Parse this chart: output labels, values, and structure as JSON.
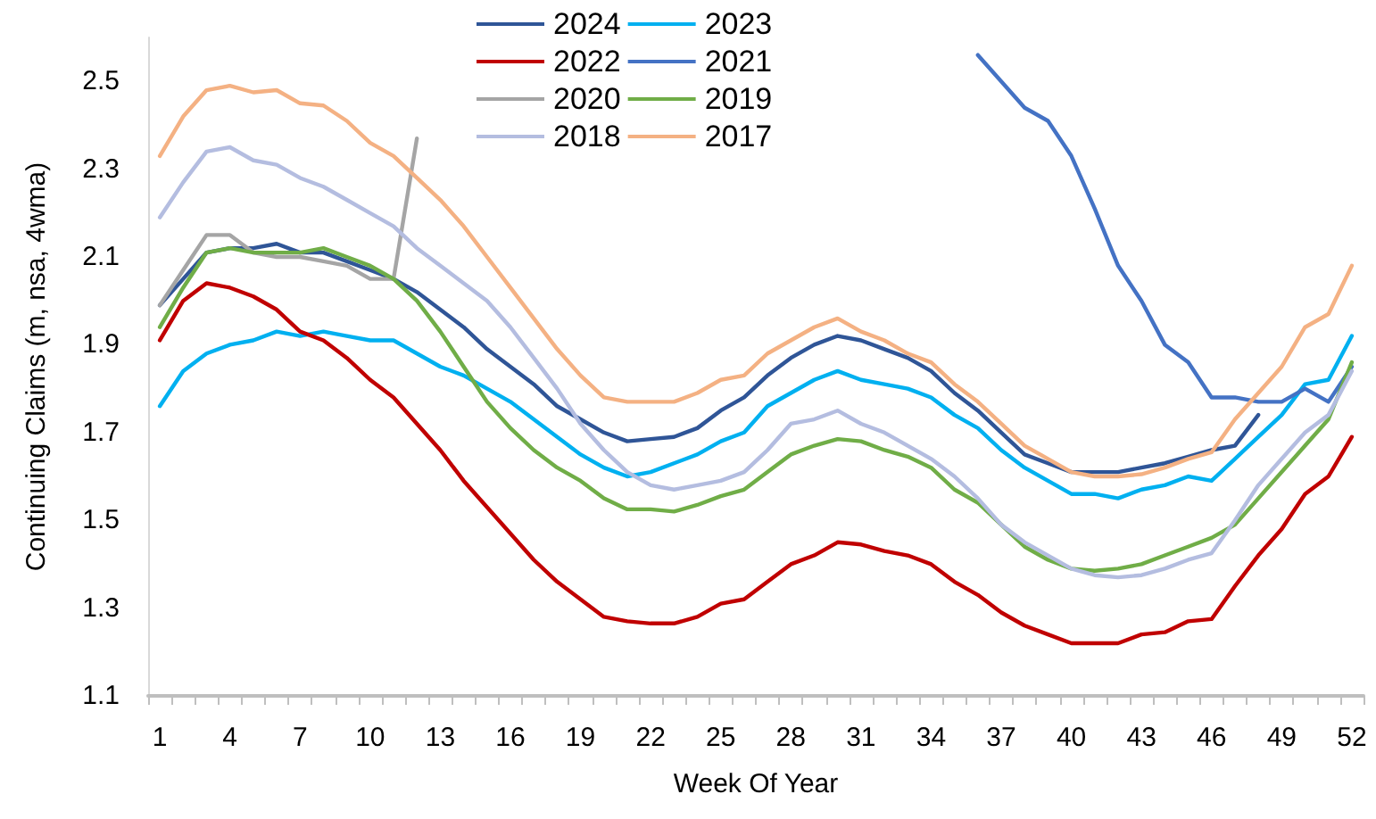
{
  "chart_data": {
    "type": "line",
    "xlabel": "Week Of Year",
    "ylabel": "Continuing Claims (m, nsa, 4wma)",
    "categories": [
      "1",
      null,
      null,
      "4",
      null,
      null,
      "7",
      null,
      null,
      "10",
      null,
      null,
      "13",
      null,
      null,
      "16",
      null,
      null,
      "19",
      null,
      null,
      "22",
      null,
      null,
      "25",
      null,
      null,
      "28",
      null,
      null,
      "31",
      null,
      null,
      "34",
      null,
      null,
      "37",
      null,
      null,
      "40",
      null,
      null,
      "43",
      null,
      null,
      "46",
      null,
      null,
      "49",
      null,
      null,
      "52"
    ],
    "ylim": [
      1.1,
      2.6
    ],
    "yticks": [
      1.1,
      1.3,
      1.5,
      1.7,
      1.9,
      2.1,
      2.3,
      2.5
    ],
    "grid": false,
    "legend": "top",
    "marker": "none",
    "line_style": "solid",
    "series": [
      {
        "name": "2024",
        "color": "#2f5597",
        "values": [
          1.99,
          2.05,
          2.11,
          2.12,
          2.12,
          2.13,
          2.11,
          2.11,
          2.09,
          2.07,
          2.05,
          2.02,
          1.98,
          1.94,
          1.89,
          1.85,
          1.81,
          1.76,
          1.73,
          1.7,
          1.68,
          1.685,
          1.69,
          1.71,
          1.75,
          1.78,
          1.83,
          1.87,
          1.9,
          1.92,
          1.91,
          1.89,
          1.87,
          1.84,
          1.79,
          1.75,
          1.7,
          1.65,
          1.63,
          1.61,
          1.61,
          1.61,
          1.62,
          1.63,
          1.645,
          1.66,
          1.67,
          1.74,
          null,
          null,
          null,
          null
        ]
      },
      {
        "name": "2023",
        "color": "#00b0f0",
        "values": [
          1.76,
          1.84,
          1.88,
          1.9,
          1.91,
          1.93,
          1.92,
          1.93,
          1.92,
          1.91,
          1.91,
          1.88,
          1.85,
          1.83,
          1.8,
          1.77,
          1.73,
          1.69,
          1.65,
          1.62,
          1.6,
          1.61,
          1.63,
          1.65,
          1.68,
          1.7,
          1.76,
          1.79,
          1.82,
          1.84,
          1.82,
          1.81,
          1.8,
          1.78,
          1.74,
          1.71,
          1.66,
          1.62,
          1.59,
          1.56,
          1.56,
          1.55,
          1.57,
          1.58,
          1.6,
          1.59,
          1.64,
          1.69,
          1.74,
          1.81,
          1.82,
          1.92
        ]
      },
      {
        "name": "2022",
        "color": "#c00000",
        "values": [
          1.91,
          2.0,
          2.04,
          2.03,
          2.01,
          1.98,
          1.93,
          1.91,
          1.87,
          1.82,
          1.78,
          1.72,
          1.66,
          1.59,
          1.53,
          1.47,
          1.41,
          1.36,
          1.32,
          1.28,
          1.27,
          1.265,
          1.265,
          1.28,
          1.31,
          1.32,
          1.36,
          1.4,
          1.42,
          1.45,
          1.445,
          1.43,
          1.42,
          1.4,
          1.36,
          1.33,
          1.29,
          1.26,
          1.24,
          1.22,
          1.22,
          1.22,
          1.24,
          1.245,
          1.27,
          1.275,
          1.35,
          1.42,
          1.48,
          1.56,
          1.6,
          1.69
        ]
      },
      {
        "name": "2021",
        "color": "#4472c4",
        "values": [
          null,
          null,
          null,
          null,
          null,
          null,
          null,
          null,
          null,
          null,
          null,
          null,
          null,
          null,
          null,
          null,
          null,
          null,
          null,
          null,
          null,
          null,
          null,
          null,
          null,
          null,
          null,
          null,
          null,
          null,
          null,
          null,
          null,
          null,
          null,
          2.56,
          2.5,
          2.44,
          2.41,
          2.33,
          2.21,
          2.08,
          2.0,
          1.9,
          1.86,
          1.78,
          1.78,
          1.77,
          1.77,
          1.8,
          1.77,
          1.85
        ]
      },
      {
        "name": "2020",
        "color": "#a5a5a5",
        "values": [
          1.99,
          2.07,
          2.15,
          2.15,
          2.11,
          2.1,
          2.1,
          2.09,
          2.08,
          2.05,
          2.05,
          2.37,
          null,
          null,
          null,
          null,
          null,
          null,
          null,
          null,
          null,
          null,
          null,
          null,
          null,
          null,
          null,
          null,
          null,
          null,
          null,
          null,
          null,
          null,
          null,
          null,
          null,
          null,
          null,
          null,
          null,
          null,
          null,
          null,
          null,
          null,
          null,
          null,
          null,
          null,
          null,
          null
        ]
      },
      {
        "name": "2019",
        "color": "#70ad47",
        "values": [
          1.94,
          2.03,
          2.11,
          2.12,
          2.11,
          2.11,
          2.11,
          2.12,
          2.1,
          2.08,
          2.05,
          2.0,
          1.93,
          1.85,
          1.77,
          1.71,
          1.66,
          1.62,
          1.59,
          1.55,
          1.525,
          1.525,
          1.52,
          1.535,
          1.555,
          1.57,
          1.61,
          1.65,
          1.67,
          1.685,
          1.68,
          1.66,
          1.645,
          1.62,
          1.57,
          1.54,
          1.49,
          1.44,
          1.41,
          1.39,
          1.385,
          1.39,
          1.4,
          1.42,
          1.44,
          1.46,
          1.49,
          1.55,
          1.61,
          1.67,
          1.73,
          1.86
        ]
      },
      {
        "name": "2018",
        "color": "#b4bde0",
        "values": [
          2.19,
          2.27,
          2.34,
          2.35,
          2.32,
          2.31,
          2.28,
          2.26,
          2.23,
          2.2,
          2.17,
          2.12,
          2.08,
          2.04,
          2.0,
          1.94,
          1.87,
          1.8,
          1.72,
          1.66,
          1.61,
          1.58,
          1.57,
          1.58,
          1.59,
          1.61,
          1.66,
          1.72,
          1.73,
          1.75,
          1.72,
          1.7,
          1.67,
          1.64,
          1.6,
          1.55,
          1.49,
          1.45,
          1.42,
          1.39,
          1.375,
          1.37,
          1.375,
          1.39,
          1.41,
          1.425,
          1.5,
          1.58,
          1.64,
          1.7,
          1.74,
          1.84
        ]
      },
      {
        "name": "2017",
        "color": "#f4b183",
        "values": [
          2.33,
          2.42,
          2.48,
          2.49,
          2.475,
          2.48,
          2.45,
          2.445,
          2.41,
          2.36,
          2.33,
          2.28,
          2.23,
          2.17,
          2.1,
          2.03,
          1.96,
          1.89,
          1.83,
          1.78,
          1.77,
          1.77,
          1.77,
          1.79,
          1.82,
          1.83,
          1.88,
          1.91,
          1.94,
          1.96,
          1.93,
          1.91,
          1.88,
          1.86,
          1.81,
          1.77,
          1.72,
          1.67,
          1.64,
          1.61,
          1.6,
          1.6,
          1.605,
          1.62,
          1.64,
          1.655,
          1.73,
          1.79,
          1.85,
          1.94,
          1.97,
          2.08
        ]
      }
    ]
  }
}
